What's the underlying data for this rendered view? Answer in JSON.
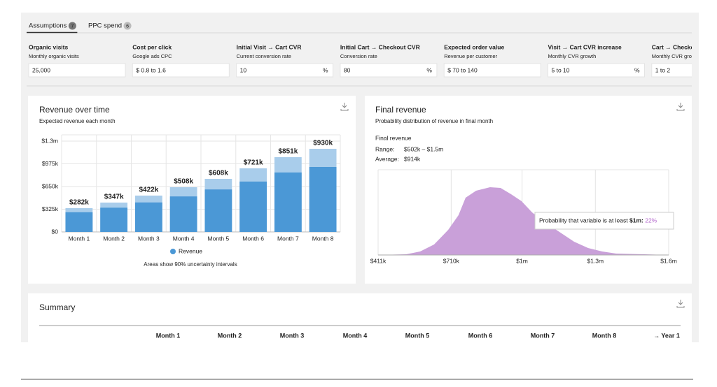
{
  "tabs": [
    {
      "label": "Assumptions",
      "count": "7"
    },
    {
      "label": "PPC spend",
      "count": "6"
    }
  ],
  "inputs": [
    {
      "label": "Organic visits",
      "sublabel": "Monthly organic visits",
      "value": "25,000"
    },
    {
      "label": "Cost per click",
      "sublabel": "Google ads CPC",
      "value": "$ 0.8 to 1.6"
    },
    {
      "label": "Initial Visit → Cart CVR",
      "sublabel": "Current conversion rate",
      "value": "10",
      "suffix": "%"
    },
    {
      "label": "Initial Cart → Checkout CVR",
      "sublabel": "Conversion rate",
      "value": "80",
      "suffix": "%"
    },
    {
      "label": "Expected order value",
      "sublabel": "Revenue per customer",
      "value": "$ 70 to 140"
    },
    {
      "label": "Visit → Cart CVR increase",
      "sublabel": "Monthly CVR growth",
      "value": "5 to 10",
      "suffix": "%"
    },
    {
      "label": "Cart → Checkout CVR increase",
      "sublabel": "Monthly CVR growth",
      "value": "1 to 2"
    }
  ],
  "chart_data": [
    {
      "type": "bar",
      "title": "Revenue over time",
      "subtitle": "Expected revenue each month",
      "categories": [
        "Month 1",
        "Month 2",
        "Month 3",
        "Month 4",
        "Month 5",
        "Month 6",
        "Month 7",
        "Month 8"
      ],
      "series": [
        {
          "name": "Revenue",
          "color": "#4b98d6",
          "upper_color": "#a9cdeb",
          "values": [
            282000,
            347000,
            422000,
            508000,
            608000,
            721000,
            851000,
            930000
          ],
          "value_labels": [
            "$282k",
            "$347k",
            "$422k",
            "$508k",
            "$608k",
            "$721k",
            "$851k",
            "$930k"
          ],
          "upper": [
            340000,
            420000,
            520000,
            640000,
            760000,
            910000,
            1070000,
            1190000
          ]
        }
      ],
      "ylim": [
        0,
        1300000
      ],
      "yticks": [
        {
          "value": 0,
          "label": "$0"
        },
        {
          "value": 325000,
          "label": "$325k"
        },
        {
          "value": 650000,
          "label": "$650k"
        },
        {
          "value": 975000,
          "label": "$975k"
        },
        {
          "value": 1300000,
          "label": "$1.3m"
        }
      ],
      "grid": true,
      "legend": "bottom",
      "note": "Areas show 90% uncertainty intervals"
    },
    {
      "type": "area",
      "title": "Final revenue",
      "subtitle": "Probability distribution of revenue in final month",
      "series_name": "Final revenue",
      "color": "#c9a0d9",
      "label_color": "#b366cc",
      "range_label": "Range:",
      "range": "$502k – $1.5m",
      "average_label": "Average:",
      "average": "$914k",
      "x": [
        411000,
        526000,
        583000,
        640000,
        698000,
        740000,
        769000,
        812000,
        869000,
        912000,
        955000,
        998000,
        1041000,
        1084000,
        1127000,
        1170000,
        1213000,
        1270000,
        1328000,
        1385000,
        1500000,
        1600000
      ],
      "values": [
        0,
        1,
        5,
        15,
        36,
        57,
        82,
        92,
        97,
        96,
        87,
        77,
        61,
        49,
        39,
        29,
        19,
        10,
        5,
        2,
        1,
        0
      ],
      "xlim": [
        411000,
        1600000
      ],
      "ylim": [
        0,
        100
      ],
      "xticks": [
        {
          "value": 411000,
          "label": "$411k"
        },
        {
          "value": 710000,
          "label": "$710k"
        },
        {
          "value": 1000000,
          "label": "$1m"
        },
        {
          "value": 1300000,
          "label": "$1.3m"
        },
        {
          "value": 1600000,
          "label": "$1.6m"
        }
      ],
      "grid": true,
      "annotation": {
        "text": "Probability that variable is at least",
        "threshold": "$1m:",
        "probability": "22%"
      }
    }
  ],
  "summary": {
    "title": "Summary",
    "columns": [
      "Month 1",
      "Month 2",
      "Month 3",
      "Month 4",
      "Month 5",
      "Month 6",
      "Month 7",
      "Month 8",
      "→ Year 1"
    ]
  }
}
